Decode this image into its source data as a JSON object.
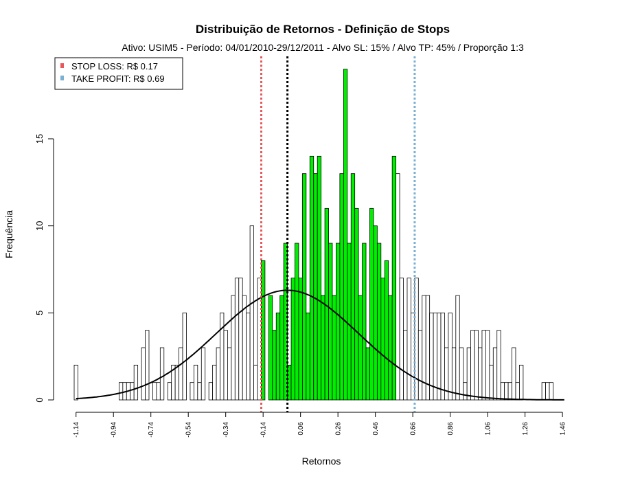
{
  "chart_data": {
    "type": "bar",
    "title": "Distribuição de Retornos - Definição de Stops",
    "subtitle": "Ativo: USIM5 - Período: 04/01/2010-29/12/2011 - Alvo SL: 15% / Alvo TP: 45% / Proporção 1:3",
    "xlabel": "Retornos",
    "ylabel": "Frequência",
    "xlim": [
      -1.15,
      1.5
    ],
    "ylim": [
      0,
      19
    ],
    "yticks": [
      0,
      5,
      10,
      15
    ],
    "xticks": [
      -1.14,
      -0.94,
      -0.74,
      -0.54,
      -0.34,
      -0.14,
      0.06,
      0.26,
      0.46,
      0.66,
      0.86,
      1.06,
      1.26,
      1.46
    ],
    "bin_start": -1.15,
    "bin_width": 0.02,
    "counts": [
      2,
      0,
      0,
      0,
      0,
      0,
      0,
      0,
      0,
      0,
      0,
      0,
      1,
      1,
      1,
      1,
      2,
      0,
      3,
      4,
      0,
      1,
      1,
      3,
      0,
      1,
      2,
      2,
      3,
      5,
      0,
      1,
      2,
      1,
      3,
      0,
      1,
      2,
      3,
      5,
      4,
      3,
      6,
      7,
      7,
      6,
      5,
      10,
      2,
      7,
      8,
      0,
      6,
      4,
      5,
      6,
      9,
      2,
      7,
      9,
      7,
      13,
      5,
      14,
      13,
      14,
      6,
      11,
      9,
      6,
      9,
      13,
      19,
      9,
      13,
      11,
      6,
      9,
      3,
      11,
      10,
      9,
      7,
      8,
      6,
      14,
      13,
      7,
      4,
      7,
      5,
      7,
      4,
      6,
      6,
      5,
      5,
      5,
      5,
      3,
      5,
      3,
      6,
      3,
      1,
      3,
      4,
      4,
      3,
      4,
      4,
      2,
      3,
      4,
      1,
      1,
      1,
      3,
      1,
      2,
      0,
      0,
      0,
      0,
      0,
      1,
      1,
      1,
      0,
      0,
      0,
      0,
      0,
      0,
      0,
      0,
      0,
      0,
      0,
      0,
      0,
      0,
      0,
      0,
      0,
      0,
      0,
      0,
      0,
      0,
      0,
      0,
      0,
      0,
      0,
      0,
      0
    ],
    "highlight_range": [
      -0.14,
      0.58
    ],
    "normal_fit": {
      "mean": -0.01,
      "sd": 0.38,
      "n": 300
    },
    "vlines": [
      {
        "name": "STOP LOSS",
        "x": -0.15,
        "color": "#e8585a"
      },
      {
        "name": "mean",
        "x": -0.01,
        "color": "#000000"
      },
      {
        "name": "TAKE PROFIT",
        "x": 0.67,
        "color": "#7ab0d3"
      }
    ],
    "legend": {
      "position": "top-left",
      "entries": [
        {
          "label": "STOP LOSS: R$ 0.17",
          "color": "#e8585a"
        },
        {
          "label": "TAKE PROFIT: R$ 0.69",
          "color": "#7ab0d3"
        }
      ]
    },
    "colors": {
      "highlight": "#00ee00",
      "bar": "#ffffff",
      "outline": "#000000"
    },
    "grid": false
  }
}
